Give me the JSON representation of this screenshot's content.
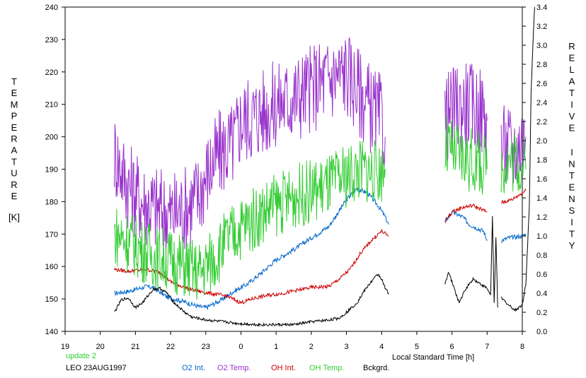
{
  "chart_data": {
    "type": "line",
    "left_axis": {
      "label_letters": [
        "T",
        "E",
        "M",
        "P",
        "E",
        "R",
        "A",
        "T",
        "U",
        "R",
        "E"
      ],
      "unit": "[K]",
      "range": [
        140,
        240
      ],
      "ticks": [
        140,
        150,
        160,
        170,
        180,
        190,
        200,
        210,
        220,
        230,
        240
      ]
    },
    "right_axis": {
      "label_words": [
        [
          "R",
          "E",
          "L",
          "A",
          "T",
          "I",
          "V",
          "E"
        ],
        [
          "I",
          "N",
          "T",
          "E",
          "N",
          "S",
          "I",
          "T",
          "Y"
        ]
      ],
      "range": [
        0,
        3.4
      ],
      "ticks": [
        "0.0",
        "0.2",
        "0.4",
        "0.6",
        "0.8",
        "1.0",
        "1.2",
        "1.4",
        "1.6",
        "1.8",
        "2.0",
        "2.2",
        "2.4",
        "2.6",
        "2.8",
        "3.0",
        "3.2",
        "3.4"
      ]
    },
    "x_axis": {
      "label": "Local Standard Time [h]",
      "ticks": [
        [
          "19",
          19
        ],
        [
          "20",
          20
        ],
        [
          "21",
          21
        ],
        [
          "22",
          22
        ],
        [
          "23",
          23
        ],
        [
          "0",
          24
        ],
        [
          "1",
          25
        ],
        [
          "2",
          26
        ],
        [
          "3",
          27
        ],
        [
          "4",
          28
        ],
        [
          "5",
          29
        ],
        [
          "6",
          30
        ],
        [
          "7",
          31
        ],
        [
          "8",
          32
        ]
      ],
      "range": [
        19,
        32
      ]
    },
    "grid": false,
    "series": [
      {
        "name": "O2 Int.",
        "color": "#0066cc",
        "axis": "right",
        "noise": 0.025,
        "points": [
          [
            20.4,
            0.4
          ],
          [
            20.8,
            0.42
          ],
          [
            21.3,
            0.47
          ],
          [
            21.5,
            0.46
          ],
          [
            21.9,
            0.36
          ],
          [
            22.3,
            0.32
          ],
          [
            22.8,
            0.26
          ],
          [
            23.0,
            0.25
          ],
          [
            23.4,
            0.32
          ],
          [
            23.8,
            0.42
          ],
          [
            24.2,
            0.5
          ],
          [
            24.6,
            0.62
          ],
          [
            25.0,
            0.75
          ],
          [
            25.6,
            0.88
          ],
          [
            26.0,
            0.98
          ],
          [
            26.5,
            1.1
          ],
          [
            27.0,
            1.38
          ],
          [
            27.3,
            1.5
          ],
          [
            27.6,
            1.45
          ],
          [
            27.9,
            1.32
          ],
          [
            28.1,
            1.2
          ],
          [
            28.2,
            1.12
          ]
        ],
        "segment2": [
          [
            29.8,
            1.15
          ],
          [
            30.0,
            1.25
          ],
          [
            30.3,
            1.2
          ],
          [
            30.5,
            1.12
          ],
          [
            30.9,
            1.05
          ],
          [
            31.0,
            0.95
          ]
        ],
        "segment3": [
          [
            31.4,
            0.95
          ],
          [
            31.6,
            0.98
          ],
          [
            32.0,
            1.0
          ],
          [
            32.1,
            1.02
          ]
        ]
      },
      {
        "name": "O2 Temp.",
        "color": "#9933cc",
        "axis": "left",
        "noise": 14,
        "points": [
          [
            20.4,
            195
          ],
          [
            20.8,
            185
          ],
          [
            21.2,
            180
          ],
          [
            21.6,
            178
          ],
          [
            22.0,
            176
          ],
          [
            22.4,
            178
          ],
          [
            22.8,
            182
          ],
          [
            23.0,
            188
          ],
          [
            23.4,
            195
          ],
          [
            23.8,
            198
          ],
          [
            24.0,
            205
          ],
          [
            24.5,
            207
          ],
          [
            25.0,
            210
          ],
          [
            25.5,
            212
          ],
          [
            26.0,
            215
          ],
          [
            26.5,
            218
          ],
          [
            27.0,
            220
          ],
          [
            27.3,
            215
          ],
          [
            27.6,
            210
          ],
          [
            28.0,
            205
          ],
          [
            28.1,
            200
          ]
        ],
        "segment2": [
          [
            29.8,
            205
          ],
          [
            30.0,
            208
          ],
          [
            30.4,
            210
          ],
          [
            30.8,
            208
          ],
          [
            31.0,
            205
          ]
        ],
        "segment3": [
          [
            31.4,
            197
          ],
          [
            31.8,
            196
          ],
          [
            32.1,
            200
          ]
        ]
      },
      {
        "name": "OH Int.",
        "color": "#cc0000",
        "axis": "right",
        "noise": 0.02,
        "points": [
          [
            20.4,
            0.65
          ],
          [
            20.8,
            0.63
          ],
          [
            21.3,
            0.65
          ],
          [
            21.7,
            0.62
          ],
          [
            22.0,
            0.52
          ],
          [
            22.4,
            0.46
          ],
          [
            22.8,
            0.42
          ],
          [
            23.1,
            0.4
          ],
          [
            23.6,
            0.37
          ],
          [
            24.0,
            0.3
          ],
          [
            24.4,
            0.35
          ],
          [
            24.8,
            0.38
          ],
          [
            25.2,
            0.4
          ],
          [
            25.6,
            0.43
          ],
          [
            26.0,
            0.46
          ],
          [
            26.5,
            0.47
          ],
          [
            26.8,
            0.55
          ],
          [
            27.1,
            0.65
          ],
          [
            27.4,
            0.82
          ],
          [
            27.7,
            0.95
          ],
          [
            28.0,
            1.05
          ],
          [
            28.2,
            1.0
          ]
        ],
        "segment2": [
          [
            29.8,
            1.15
          ],
          [
            30.0,
            1.25
          ],
          [
            30.3,
            1.3
          ],
          [
            30.6,
            1.32
          ],
          [
            31.0,
            1.25
          ]
        ],
        "segment3": [
          [
            31.4,
            1.35
          ],
          [
            31.7,
            1.38
          ],
          [
            32.0,
            1.45
          ],
          [
            32.1,
            1.48
          ]
        ]
      },
      {
        "name": "OH Temp.",
        "color": "#33cc33",
        "axis": "left",
        "noise": 10,
        "points": [
          [
            20.4,
            170
          ],
          [
            20.8,
            168
          ],
          [
            21.2,
            165
          ],
          [
            21.6,
            163
          ],
          [
            22.0,
            162
          ],
          [
            22.4,
            160
          ],
          [
            22.8,
            158
          ],
          [
            23.2,
            162
          ],
          [
            23.6,
            168
          ],
          [
            24.0,
            172
          ],
          [
            24.4,
            175
          ],
          [
            24.8,
            178
          ],
          [
            25.2,
            180
          ],
          [
            25.6,
            182
          ],
          [
            26.0,
            183
          ],
          [
            26.5,
            185
          ],
          [
            27.0,
            188
          ],
          [
            27.4,
            190
          ],
          [
            27.8,
            189
          ],
          [
            28.1,
            190
          ]
        ],
        "segment2": [
          [
            29.8,
            197
          ],
          [
            30.0,
            195
          ],
          [
            30.4,
            193
          ],
          [
            30.8,
            192
          ],
          [
            31.0,
            190
          ]
        ],
        "segment3": [
          [
            31.4,
            192
          ],
          [
            31.8,
            193
          ],
          [
            32.1,
            190
          ]
        ]
      },
      {
        "name": "Bckgrd.",
        "color": "#000000",
        "axis": "right",
        "noise": 0.015,
        "points": [
          [
            20.4,
            0.2
          ],
          [
            20.6,
            0.33
          ],
          [
            20.8,
            0.35
          ],
          [
            21.0,
            0.25
          ],
          [
            21.2,
            0.3
          ],
          [
            21.5,
            0.44
          ],
          [
            21.7,
            0.45
          ],
          [
            21.9,
            0.4
          ],
          [
            22.1,
            0.3
          ],
          [
            22.4,
            0.2
          ],
          [
            22.6,
            0.15
          ],
          [
            23.0,
            0.12
          ],
          [
            23.5,
            0.1
          ],
          [
            24.0,
            0.08
          ],
          [
            24.5,
            0.07
          ],
          [
            25.0,
            0.07
          ],
          [
            25.5,
            0.07
          ],
          [
            26.0,
            0.1
          ],
          [
            26.5,
            0.12
          ],
          [
            26.8,
            0.14
          ],
          [
            27.0,
            0.2
          ],
          [
            27.3,
            0.3
          ],
          [
            27.5,
            0.42
          ],
          [
            27.7,
            0.52
          ],
          [
            27.9,
            0.6
          ],
          [
            28.0,
            0.55
          ],
          [
            28.1,
            0.45
          ],
          [
            28.2,
            0.4
          ]
        ],
        "segment2": [
          [
            29.8,
            0.5
          ],
          [
            29.9,
            0.62
          ],
          [
            30.0,
            0.52
          ],
          [
            30.2,
            0.3
          ],
          [
            30.4,
            0.45
          ],
          [
            30.6,
            0.55
          ],
          [
            30.8,
            0.5
          ],
          [
            31.0,
            0.45
          ],
          [
            31.1,
            0.38
          ],
          [
            31.15,
            1.2
          ],
          [
            31.2,
            0.3
          ],
          [
            31.25,
            1.0
          ],
          [
            31.3,
            0.25
          ]
        ],
        "segment3": [
          [
            31.4,
            0.35
          ],
          [
            31.6,
            0.28
          ],
          [
            31.8,
            0.22
          ],
          [
            32.0,
            0.28
          ],
          [
            32.1,
            0.5
          ],
          [
            32.2,
            1.3
          ],
          [
            32.25,
            2.5
          ],
          [
            32.3,
            3.0
          ],
          [
            32.35,
            3.4
          ]
        ]
      }
    ]
  },
  "footer": {
    "update_label": "update 2",
    "location_date": "LEO 23AUG1997",
    "legend": [
      {
        "label": "O2 Int.",
        "color": "#0066cc"
      },
      {
        "label": "O2 Temp.",
        "color": "#9933cc"
      },
      {
        "label": "OH Int.",
        "color": "#cc0000"
      },
      {
        "label": "OH Temp.",
        "color": "#33cc33"
      },
      {
        "label": "Bckgrd.",
        "color": "#000000"
      }
    ]
  },
  "colors": {
    "update_label": "#33cc33"
  }
}
